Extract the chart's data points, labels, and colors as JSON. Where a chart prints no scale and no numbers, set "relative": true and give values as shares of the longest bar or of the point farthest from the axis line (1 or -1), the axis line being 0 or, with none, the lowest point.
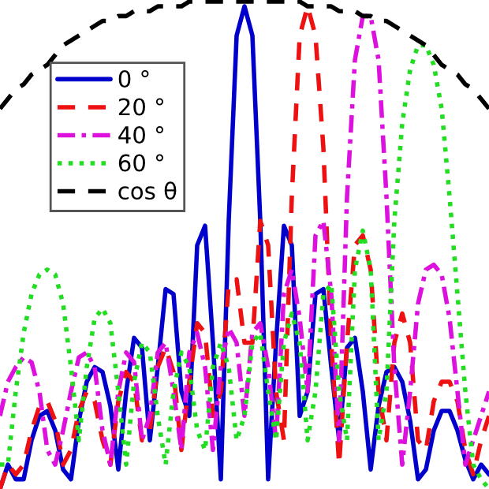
{
  "chart_data": {
    "type": "line",
    "relative": true,
    "legend": "top left",
    "categories": [
      null,
      null,
      null,
      null,
      null,
      null,
      null,
      null,
      null,
      null,
      null,
      null,
      null,
      null,
      null,
      null,
      null,
      null,
      null,
      null,
      null,
      null,
      null,
      null,
      null,
      null,
      null,
      null,
      null,
      null,
      null,
      null,
      null,
      null,
      null,
      null,
      null,
      null,
      null,
      null,
      null,
      null,
      null,
      null,
      null,
      null,
      null,
      null,
      null,
      null,
      null,
      null,
      null,
      null,
      null,
      null,
      null,
      null,
      null,
      null,
      null,
      null,
      null
    ],
    "series": [
      {
        "name": "0 °",
        "color": "#0000cc",
        "line_style": "solid",
        "values": [
          0,
          0.05,
          0.02,
          0.02,
          0.1,
          0.15,
          0.16,
          0.12,
          0.04,
          0.02,
          0.14,
          0.22,
          0.25,
          0.24,
          0.17,
          0.04,
          0.2,
          0.31,
          0.29,
          0.1,
          0.25,
          0.41,
          0.4,
          0.2,
          0.15,
          0.5,
          0.54,
          0.3,
          0.02,
          0.55,
          0.93,
          0.99,
          0.93,
          0.55,
          0.02,
          0.3,
          0.54,
          0.5,
          0.15,
          0.2,
          0.4,
          0.41,
          0.25,
          0.1,
          0.29,
          0.31,
          0.2,
          0.04,
          0.17,
          0.24,
          0.25,
          0.22,
          0.14,
          0.02,
          0.04,
          0.12,
          0.16,
          0.16,
          0.12,
          0.06,
          0.02,
          0.05,
          0.03
        ]
      },
      {
        "name": "20 °",
        "color": "#ee1111",
        "line_style": "dashed",
        "values": [
          0,
          0.05,
          0.03,
          0.05,
          0.12,
          0.17,
          0.18,
          0.14,
          0.05,
          0.08,
          0.16,
          0.2,
          0.18,
          0.1,
          0.05,
          0.18,
          0.24,
          0.22,
          0.1,
          0.12,
          0.25,
          0.29,
          0.24,
          0.08,
          0.22,
          0.34,
          0.32,
          0.15,
          0.2,
          0.42,
          0.43,
          0.3,
          0.3,
          0.55,
          0.5,
          0.2,
          0.1,
          0.6,
          0.93,
          0.99,
          0.93,
          0.7,
          0.3,
          0.05,
          0.3,
          0.5,
          0.52,
          0.45,
          0.2,
          0.1,
          0.3,
          0.36,
          0.3,
          0.1,
          0.08,
          0.18,
          0.22,
          0.22,
          0.18,
          0.08,
          0.03,
          0.1,
          0.15
        ]
      },
      {
        "name": "40 °",
        "color": "#dd11dd",
        "line_style": "dashdot",
        "values": [
          0.15,
          0.22,
          0.25,
          0.27,
          0.26,
          0.2,
          0.08,
          0.05,
          0.12,
          0.2,
          0.27,
          0.28,
          0.25,
          0.12,
          0.05,
          0.2,
          0.28,
          0.26,
          0.1,
          0.15,
          0.28,
          0.3,
          0.2,
          0.08,
          0.28,
          0.32,
          0.25,
          0.08,
          0.25,
          0.33,
          0.3,
          0.15,
          0.32,
          0.34,
          0.25,
          0.1,
          0.4,
          0.45,
          0.35,
          0.2,
          0.52,
          0.55,
          0.4,
          0.1,
          0.6,
          0.88,
          0.97,
          0.97,
          0.88,
          0.6,
          0.25,
          0.05,
          0.2,
          0.38,
          0.45,
          0.46,
          0.44,
          0.35,
          0.2,
          0.05,
          0.1,
          0.15,
          0.2
        ]
      },
      {
        "name": "60 °",
        "color": "#22dd22",
        "line_style": "dotted",
        "values": [
          0.05,
          0.05,
          0.2,
          0.32,
          0.4,
          0.44,
          0.45,
          0.44,
          0.38,
          0.25,
          0.1,
          0.25,
          0.35,
          0.37,
          0.34,
          0.2,
          0.05,
          0.22,
          0.3,
          0.28,
          0.15,
          0.05,
          0.2,
          0.28,
          0.25,
          0.12,
          0.08,
          0.25,
          0.3,
          0.25,
          0.1,
          0.15,
          0.3,
          0.32,
          0.2,
          0.1,
          0.3,
          0.36,
          0.3,
          0.1,
          0.2,
          0.4,
          0.42,
          0.2,
          0.1,
          0.45,
          0.53,
          0.45,
          0.1,
          0.2,
          0.55,
          0.75,
          0.86,
          0.91,
          0.91,
          0.87,
          0.78,
          0.6,
          0.4,
          0.2,
          0.05,
          0.02,
          0
        ]
      },
      {
        "name": "cos θ",
        "color": "#000000",
        "line_style": "dashed",
        "values": [
          0.78,
          0.8,
          0.82,
          0.83,
          0.85,
          0.86,
          0.87,
          0.89,
          0.91,
          0.92,
          0.93,
          0.94,
          0.95,
          0.96,
          0.96,
          0.97,
          0.97,
          0.98,
          0.98,
          0.98,
          0.99,
          0.99,
          0.99,
          0.99,
          1,
          1,
          1,
          1,
          1,
          1,
          1,
          1,
          1,
          1,
          1,
          1,
          1,
          1,
          1,
          0.99,
          0.99,
          0.99,
          0.99,
          0.98,
          0.98,
          0.98,
          0.97,
          0.97,
          0.96,
          0.96,
          0.95,
          0.94,
          0.93,
          0.92,
          0.91,
          0.89,
          0.87,
          0.86,
          0.85,
          0.83,
          0.82,
          0.8,
          0.78
        ]
      }
    ]
  }
}
